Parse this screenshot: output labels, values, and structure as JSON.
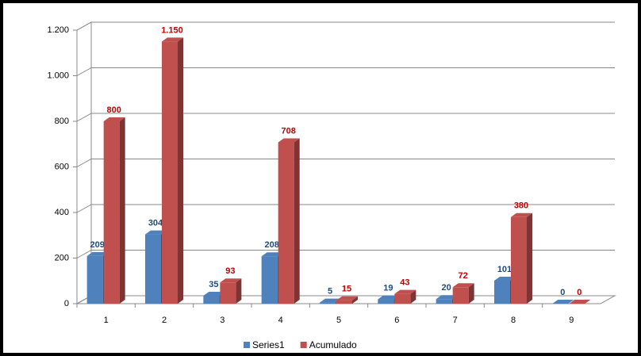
{
  "chart_data": {
    "type": "bar3d",
    "categories": [
      "1",
      "2",
      "3",
      "4",
      "5",
      "6",
      "7",
      "8",
      "9"
    ],
    "series": [
      {
        "name": "Series1",
        "color": "#4f81bd",
        "label_color": "#1f497d",
        "values": [
          209,
          304,
          35,
          208,
          5,
          19,
          20,
          101,
          0
        ]
      },
      {
        "name": "Acumulado",
        "color": "#c0504d",
        "label_color": "#c00000",
        "values": [
          800,
          1150,
          93,
          708,
          15,
          43,
          72,
          380,
          0
        ],
        "value_labels": [
          "800",
          "1.150",
          "93",
          "708",
          "15",
          "43",
          "72",
          "380",
          "0"
        ]
      }
    ],
    "ylim": [
      0,
      1200
    ],
    "yticks": [
      0,
      200,
      400,
      600,
      800,
      {
        "value": 1000,
        "label": "1.000"
      },
      {
        "value": 1200,
        "label": "1.200"
      }
    ],
    "grid": true,
    "legend": "bottom"
  }
}
